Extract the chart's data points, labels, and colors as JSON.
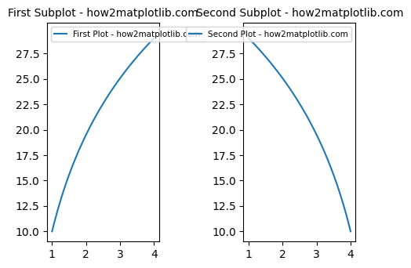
{
  "title1": "First Subplot - how2matplotlib.com",
  "title2": "Second Subplot - how2matplotlib.com",
  "legend1": "First Plot - how2matplotlib.com",
  "legend2": "Second Plot - how2matplotlib.com",
  "line_color": "#1f77b4",
  "ylim": [
    9.0,
    30.5
  ],
  "xlim": [
    0.85,
    4.15
  ],
  "yticks": [
    10.0,
    12.5,
    15.0,
    17.5,
    20.0,
    22.5,
    25.0,
    27.5
  ],
  "xticks": [
    1,
    2,
    3,
    4
  ],
  "title_fontsize": 10,
  "legend_fontsize": 7.5
}
